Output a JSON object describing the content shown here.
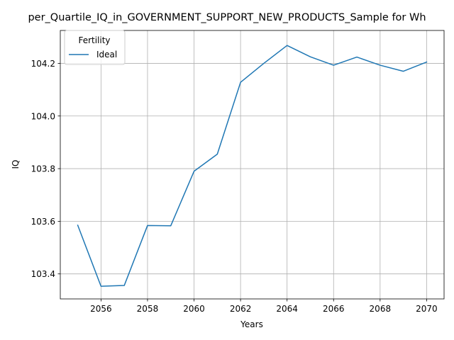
{
  "chart_data": {
    "type": "line",
    "title": "per_Quartile_IQ_in_GOVERNMENT_SUPPORT_NEW_PRODUCTS_Sample for Wh",
    "xlabel": "Years",
    "ylabel": "IQ",
    "xlim": [
      2054.25,
      2070.75
    ],
    "ylim": [
      103.305,
      104.325
    ],
    "xticks": [
      2056,
      2058,
      2060,
      2062,
      2064,
      2066,
      2068,
      2070
    ],
    "yticks": [
      103.4,
      103.6,
      103.8,
      104.0,
      104.2
    ],
    "xtick_labels": [
      "2056",
      "2058",
      "2060",
      "2062",
      "2064",
      "2066",
      "2068",
      "2070"
    ],
    "ytick_labels": [
      "103.4",
      "103.6",
      "103.8",
      "104.0",
      "104.2"
    ],
    "grid": true,
    "legend": {
      "title": "Fertility",
      "placement": "top-left"
    },
    "series": [
      {
        "name": "Ideal",
        "color": "#1f77b4",
        "x": [
          2055,
          2056,
          2057,
          2058,
          2059,
          2060,
          2061,
          2062,
          2063,
          2064,
          2065,
          2066,
          2067,
          2068,
          2069,
          2070
        ],
        "values": [
          103.585,
          103.353,
          103.356,
          103.584,
          103.583,
          103.79,
          103.855,
          104.128,
          104.2,
          104.268,
          104.225,
          104.193,
          104.224,
          104.193,
          104.17,
          104.205
        ]
      }
    ]
  }
}
